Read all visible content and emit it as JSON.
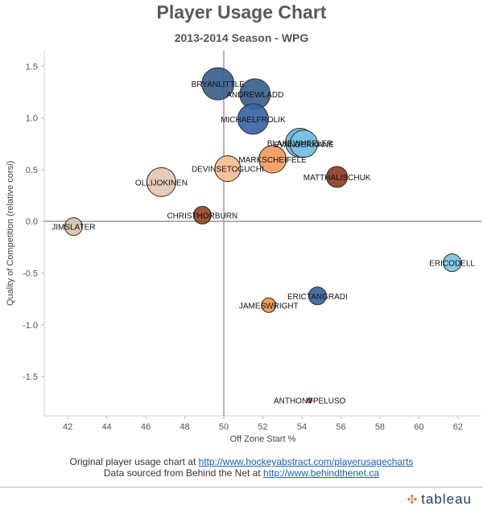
{
  "header": {
    "title": "Player Usage Chart",
    "subtitle": "2013-2014 Season - WPG"
  },
  "footer": {
    "line1_prefix": "Original player usage chart at",
    "line1_link": "http://www.hockeyabstract.com/playerusagecharts",
    "line2_prefix": "Data sourced from Behind the Net at",
    "line2_link": "http://www.behindthenet.ca"
  },
  "brand": {
    "name": "tableau",
    "mark": "✣"
  },
  "chart_data": {
    "type": "scatter",
    "title": "Player Usage Chart",
    "subtitle": "2013-2014 Season - WPG",
    "xlabel": "Off Zone Start %",
    "ylabel": "Quality of Competition (relative corsi)",
    "xlim": [
      40.8,
      63.2
    ],
    "ylim": [
      -1.88,
      1.65
    ],
    "x_ticks": [
      42,
      44,
      46,
      48,
      50,
      52,
      54,
      56,
      58,
      60,
      62
    ],
    "y_ticks": [
      1.5,
      1.0,
      0.5,
      0.0,
      -0.5,
      -1.0,
      -1.5
    ],
    "x_tick_labels": [
      "42",
      "44",
      "46",
      "48",
      "50",
      "52",
      "54",
      "56",
      "58",
      "60",
      "62"
    ],
    "y_tick_labels": [
      "1.5",
      "1.0",
      "0.5",
      "0.0",
      "-0.5",
      "-1.0",
      "-1.5"
    ],
    "reference_lines": {
      "x": 50,
      "y": 0
    },
    "grid": false,
    "encoding": {
      "size": "relative ice time",
      "color": "relative corsi (blue = positive, brown = negative)"
    },
    "points": [
      {
        "name": "BRYANLITTLE",
        "x": 49.7,
        "y": 1.33,
        "size": 20,
        "color": "#3b5f8e"
      },
      {
        "name": "ANDREWLADD",
        "x": 51.6,
        "y": 1.23,
        "size": 19,
        "color": "#3c5f8f"
      },
      {
        "name": "MICHAELFROLIK",
        "x": 51.5,
        "y": 0.99,
        "size": 19,
        "color": "#3a64a6"
      },
      {
        "name": "BLAKEWHEELER",
        "x": 53.9,
        "y": 0.76,
        "size": 18,
        "color": "#6ab4db"
      },
      {
        "name": "EVANDERKANE",
        "x": 54.1,
        "y": 0.75,
        "size": 17,
        "color": "#7cc3e6"
      },
      {
        "name": "MARKSCHEIFELE",
        "x": 52.5,
        "y": 0.6,
        "size": 17,
        "color": "#f49b5f"
      },
      {
        "name": "DEVINSETOGUCHI",
        "x": 50.2,
        "y": 0.51,
        "size": 16,
        "color": "#f7bd8f"
      },
      {
        "name": "OLLIJOKINEN",
        "x": 46.8,
        "y": 0.38,
        "size": 18,
        "color": "#e2c9b2"
      },
      {
        "name": "MATTHALISCHUK",
        "x": 55.8,
        "y": 0.43,
        "size": 13,
        "color": "#8c3f24"
      },
      {
        "name": "CHRISTHORBURN",
        "x": 48.9,
        "y": 0.06,
        "size": 11,
        "color": "#934628"
      },
      {
        "name": "JIMSLATER",
        "x": 42.3,
        "y": -0.05,
        "size": 11,
        "color": "#dcc2aa"
      },
      {
        "name": "ERICODELL",
        "x": 61.7,
        "y": -0.4,
        "size": 11,
        "color": "#7cc3e6"
      },
      {
        "name": "ERICTANGRADI",
        "x": 54.8,
        "y": -0.72,
        "size": 11,
        "color": "#3b6399"
      },
      {
        "name": "JAMESWRIGHT",
        "x": 52.3,
        "y": -0.81,
        "size": 9,
        "color": "#f5914a"
      },
      {
        "name": "ANTHONYPELUSO",
        "x": 54.4,
        "y": -1.73,
        "size": 3,
        "color": "#e07a3e"
      }
    ]
  }
}
